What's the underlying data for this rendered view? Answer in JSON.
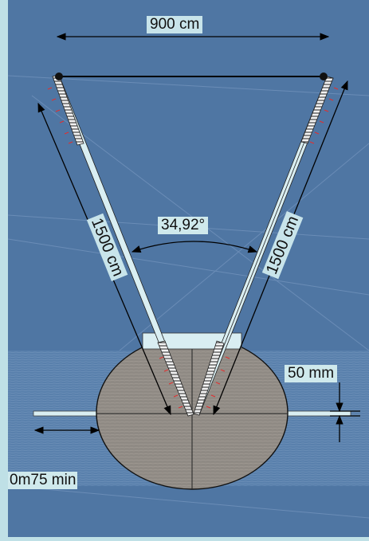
{
  "labels": {
    "span_width": "900 cm",
    "left_length": "1500 cm",
    "right_length": "1500 cm",
    "angle": "34,92°",
    "thickness": "50 mm",
    "min_spacing": "0m75 min"
  },
  "colors": {
    "frame": "#bfe0e6",
    "panel": "#4f76a3",
    "disc": "#8f8a84",
    "rod": "#d9eef2",
    "arrow": "#000000",
    "ticks": "#e03030"
  }
}
